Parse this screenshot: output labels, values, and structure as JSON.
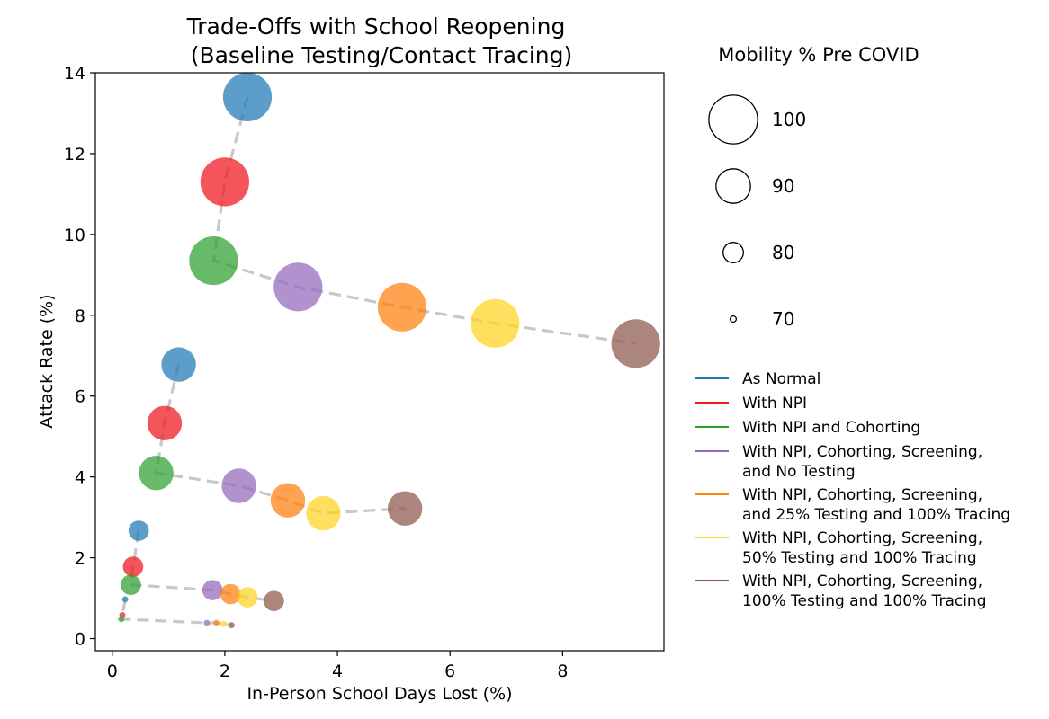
{
  "chart_data": {
    "type": "scatter",
    "title_line1": "Trade-Offs with School Reopening",
    "title_line2": "(Baseline Testing/Contact Tracing)",
    "xlabel": "In-Person School Days Lost (%)",
    "ylabel": "Attack Rate (%)",
    "xlim": [
      -0.3,
      9.8
    ],
    "ylim": [
      -0.3,
      14.0
    ],
    "xticks": [
      0,
      2,
      4,
      6,
      8
    ],
    "yticks": [
      0,
      2,
      4,
      6,
      8,
      10,
      12,
      14
    ],
    "grid": false,
    "connector_color": "#c8c8c8",
    "size_legend": {
      "title": "Mobility % Pre COVID",
      "entries": [
        {
          "label": "100",
          "mobility": 100
        },
        {
          "label": "90",
          "mobility": 90
        },
        {
          "label": "80",
          "mobility": 80
        },
        {
          "label": "70",
          "mobility": 70
        }
      ]
    },
    "series": [
      {
        "name": "As Normal",
        "color": "#1f77b4"
      },
      {
        "name": "With NPI",
        "color": "#f0141e"
      },
      {
        "name": "With NPI and Cohorting",
        "color": "#2ca02c"
      },
      {
        "name": "With NPI, Cohorting, Screening,\nand No Testing",
        "color": "#9467bd"
      },
      {
        "name": "With NPI, Cohorting, Screening,\nand 25% Testing and 100% Tracing",
        "color": "#ff7f0e"
      },
      {
        "name": "With NPI, Cohorting, Screening,\n50% Testing and 100% Tracing",
        "color": "#ffd21e"
      },
      {
        "name": "With NPI, Cohorting, Screening,\n100% Testing and 100% Tracing",
        "color": "#8c564b"
      }
    ],
    "groups": [
      {
        "mobility": 100,
        "points": [
          {
            "series": 0,
            "x": 2.4,
            "y": 13.4
          },
          {
            "series": 1,
            "x": 2.0,
            "y": 11.3
          },
          {
            "series": 2,
            "x": 1.8,
            "y": 9.35
          },
          {
            "series": 3,
            "x": 3.3,
            "y": 8.7
          },
          {
            "series": 4,
            "x": 5.15,
            "y": 8.2
          },
          {
            "series": 5,
            "x": 6.8,
            "y": 7.8
          },
          {
            "series": 6,
            "x": 9.3,
            "y": 7.3
          }
        ]
      },
      {
        "mobility": 90,
        "points": [
          {
            "series": 0,
            "x": 1.18,
            "y": 6.78
          },
          {
            "series": 1,
            "x": 0.93,
            "y": 5.33
          },
          {
            "series": 2,
            "x": 0.78,
            "y": 4.1
          },
          {
            "series": 3,
            "x": 2.25,
            "y": 3.78
          },
          {
            "series": 4,
            "x": 3.12,
            "y": 3.42
          },
          {
            "series": 5,
            "x": 3.75,
            "y": 3.1
          },
          {
            "series": 6,
            "x": 5.2,
            "y": 3.22
          }
        ]
      },
      {
        "mobility": 80,
        "points": [
          {
            "series": 0,
            "x": 0.47,
            "y": 2.67
          },
          {
            "series": 1,
            "x": 0.37,
            "y": 1.78
          },
          {
            "series": 2,
            "x": 0.33,
            "y": 1.33
          },
          {
            "series": 3,
            "x": 1.78,
            "y": 1.2
          },
          {
            "series": 4,
            "x": 2.1,
            "y": 1.1
          },
          {
            "series": 5,
            "x": 2.4,
            "y": 1.02
          },
          {
            "series": 6,
            "x": 2.87,
            "y": 0.93
          }
        ]
      },
      {
        "mobility": 70,
        "points": [
          {
            "series": 0,
            "x": 0.23,
            "y": 0.97
          },
          {
            "series": 1,
            "x": 0.18,
            "y": 0.58
          },
          {
            "series": 2,
            "x": 0.16,
            "y": 0.48
          },
          {
            "series": 3,
            "x": 1.68,
            "y": 0.39
          },
          {
            "series": 4,
            "x": 1.85,
            "y": 0.39
          },
          {
            "series": 5,
            "x": 1.98,
            "y": 0.36
          },
          {
            "series": 6,
            "x": 2.12,
            "y": 0.33
          }
        ]
      }
    ]
  }
}
